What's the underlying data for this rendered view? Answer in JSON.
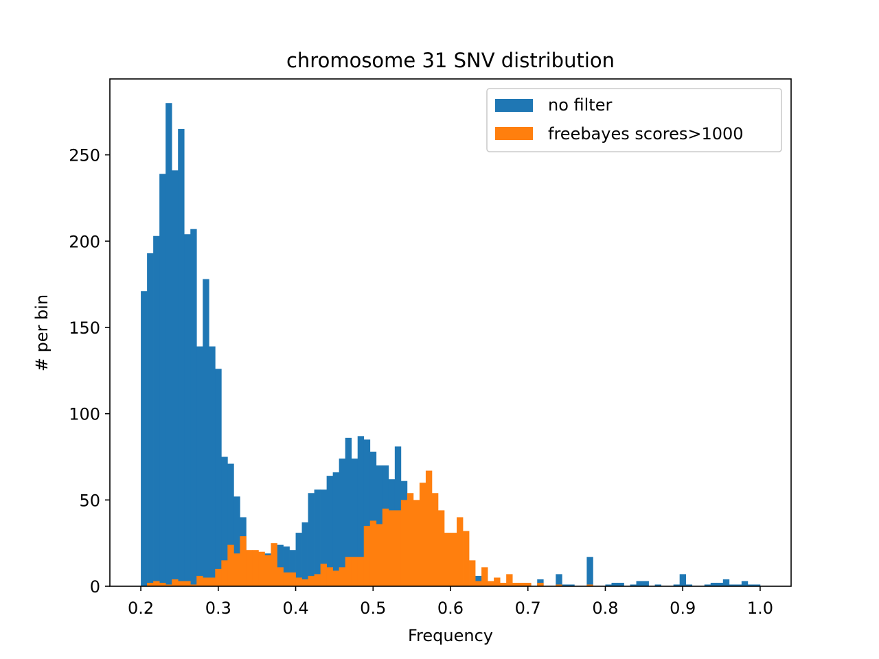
{
  "chart_data": {
    "type": "bar",
    "title": "chromosome 31 SNV distribution",
    "xlabel": "Frequency",
    "ylabel": "# per bin",
    "xlim": [
      0.16,
      1.04
    ],
    "ylim": [
      0,
      294
    ],
    "xticks": [
      0.2,
      0.3,
      0.4,
      0.5,
      0.6,
      0.7,
      0.8,
      0.9,
      1.0
    ],
    "xtick_labels": [
      "0.2",
      "0.3",
      "0.4",
      "0.5",
      "0.6",
      "0.7",
      "0.8",
      "0.9",
      "1.0"
    ],
    "yticks": [
      0,
      50,
      100,
      150,
      200,
      250
    ],
    "ytick_labels": [
      "0",
      "50",
      "100",
      "150",
      "200",
      "250"
    ],
    "bin_edges_range": [
      0.2,
      1.0
    ],
    "bin_count": 100,
    "legend_position": "top-right",
    "series": [
      {
        "name": "no filter",
        "color": "#1f77b4",
        "values": [
          171,
          193,
          203,
          239,
          280,
          241,
          265,
          204,
          207,
          139,
          178,
          139,
          126,
          75,
          71,
          52,
          40,
          20,
          12,
          12,
          19,
          21,
          24,
          23,
          21,
          31,
          37,
          54,
          56,
          56,
          64,
          66,
          74,
          86,
          74,
          87,
          85,
          78,
          70,
          70,
          62,
          81,
          61,
          18,
          17,
          13,
          15,
          11,
          2,
          2,
          0,
          2,
          0,
          0,
          6,
          1,
          2,
          0,
          1,
          1,
          0,
          1,
          1,
          0,
          4,
          0,
          0,
          7,
          1,
          1,
          0,
          0,
          17,
          0,
          0,
          1,
          2,
          2,
          0,
          1,
          3,
          3,
          0,
          1,
          0,
          0,
          1,
          7,
          1,
          0,
          0,
          1,
          2,
          2,
          4,
          1,
          1,
          3,
          1,
          1
        ]
      },
      {
        "name": "freebayes scores>1000",
        "color": "#ff7f0e",
        "values": [
          0,
          2,
          3,
          2,
          1,
          4,
          3,
          3,
          1,
          6,
          5,
          5,
          10,
          15,
          24,
          19,
          29,
          21,
          21,
          20,
          18,
          25,
          11,
          8,
          8,
          5,
          4,
          6,
          7,
          13,
          11,
          9,
          11,
          17,
          17,
          17,
          35,
          38,
          36,
          45,
          44,
          44,
          50,
          54,
          50,
          60,
          67,
          54,
          44,
          31,
          31,
          40,
          32,
          15,
          3,
          11,
          3,
          5,
          2,
          7,
          2,
          2,
          2,
          0,
          2,
          0,
          0,
          1,
          0,
          0,
          0,
          0,
          1,
          0,
          0,
          0,
          0,
          0,
          0,
          0,
          0,
          0,
          0,
          0,
          0,
          0,
          0,
          0,
          0,
          0,
          0,
          0,
          0,
          0,
          0,
          0,
          0,
          0,
          0,
          0
        ]
      }
    ]
  }
}
